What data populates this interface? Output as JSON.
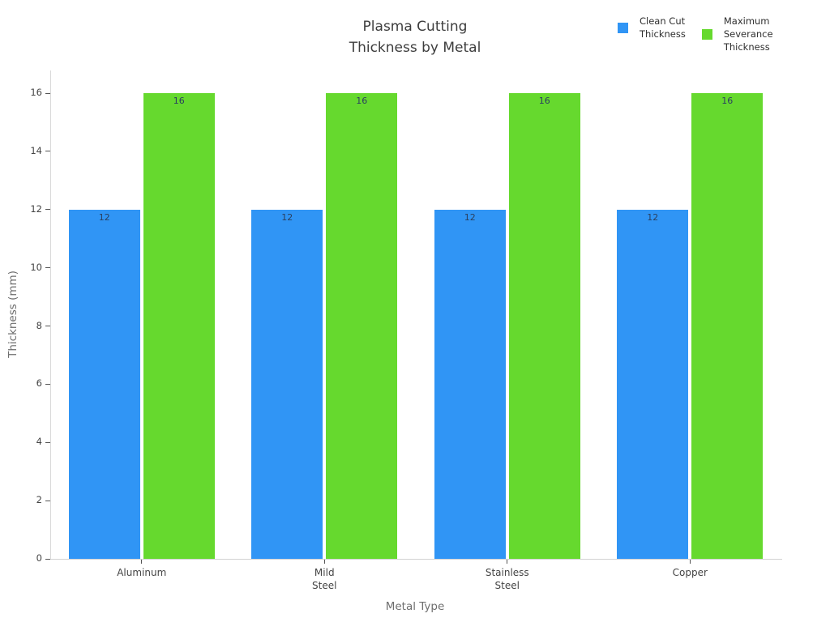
{
  "chart_data": {
    "type": "bar",
    "title": "Plasma Cutting\nThickness by Metal",
    "categories": [
      "Aluminum",
      "Mild\nSteel",
      "Stainless\nSteel",
      "Copper"
    ],
    "series": [
      {
        "name": "Clean Cut\nThickness",
        "color": "#3095F5",
        "values": [
          12,
          12,
          12,
          12
        ]
      },
      {
        "name": "Maximum\nSeverance\nThickness",
        "color": "#66D92E",
        "values": [
          16,
          16,
          16,
          16
        ]
      }
    ],
    "xlabel": "Metal Type",
    "ylabel": "Thickness (mm)",
    "ylim": [
      0,
      16.78
    ],
    "yticks": [
      0,
      2,
      4,
      6,
      8,
      10,
      12,
      14,
      16
    ],
    "grid": false,
    "legend_position": "top-right",
    "show_bar_value_labels": true,
    "colors": {
      "axis_line": "#d9d9d9",
      "tick_mark": "#555555",
      "tick_label": "#444444",
      "axis_title": "#6e6e6e",
      "bar_value_label": "#2a3f5f",
      "title_text": "#3d3d3d",
      "background": "#ffffff"
    }
  }
}
